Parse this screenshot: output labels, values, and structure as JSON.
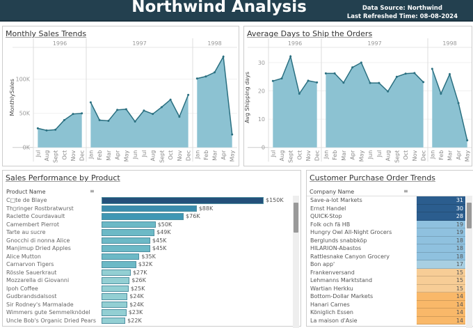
{
  "header": {
    "title": "Northwind Analysis",
    "data_source": "Data Source: Northwind",
    "refreshed": "Last Refreshed Time: 08-08-2024",
    "bg": "#23404f"
  },
  "chart_data": [
    {
      "type": "area",
      "title": "Monthly Sales Trends",
      "ylabel": "MonthlySales",
      "yticks": [
        "0K",
        "50K",
        "100K"
      ],
      "ytick_values": [
        0,
        50000,
        100000
      ],
      "ylim": [
        0,
        140000
      ],
      "fill": "#86bfd0",
      "line": "#2a6f80",
      "panes": [
        {
          "year": "1996",
          "months": [
            "Jul",
            "Aug",
            "Sept",
            "Oct",
            "Nov",
            "Dec"
          ],
          "values": [
            28000,
            25000,
            26000,
            40000,
            49000,
            50000
          ]
        },
        {
          "year": "1997",
          "months": [
            "Jan",
            "Feb",
            "Mar",
            "Apr",
            "May",
            "Jun",
            "Jul",
            "Aug",
            "Sept",
            "Oct",
            "Nov",
            "Dec"
          ],
          "values": [
            66000,
            40000,
            39000,
            55000,
            56000,
            38000,
            54000,
            49000,
            59000,
            70000,
            45000,
            77000
          ]
        },
        {
          "year": "1998",
          "months": [
            "Jan",
            "Feb",
            "Mar",
            "Apr",
            "May"
          ],
          "values": [
            101000,
            104000,
            110000,
            133000,
            19000
          ]
        }
      ]
    },
    {
      "type": "area",
      "title": "Average Days to Ship the Orders",
      "ylabel": "Avg Shipping days",
      "yticks": [
        "0",
        "10",
        "20",
        "30"
      ],
      "ytick_values": [
        0,
        10,
        20,
        30
      ],
      "ylim": [
        0,
        35
      ],
      "fill": "#86bfd0",
      "line": "#2a6f80",
      "panes": [
        {
          "year": "1996",
          "months": [
            "Jul",
            "Aug",
            "Sept",
            "Oct",
            "Nov",
            "Dec"
          ],
          "values": [
            23.5,
            24.4,
            32.2,
            19,
            23.6,
            23
          ]
        },
        {
          "year": "1997",
          "months": [
            "Jan",
            "Feb",
            "Mar",
            "Apr",
            "May",
            "Jun",
            "Jul",
            "Aug",
            "Sept",
            "Oct",
            "Nov",
            "Dec"
          ],
          "values": [
            26.2,
            26.2,
            22.9,
            28.3,
            30,
            22.8,
            22.8,
            19.8,
            25,
            26.1,
            26.3,
            23.1
          ]
        },
        {
          "year": "1998",
          "months": [
            "Jan",
            "Feb",
            "Mar",
            "Apr",
            "May"
          ],
          "values": [
            27.8,
            19,
            25.9,
            15.7,
            2.5
          ]
        }
      ]
    },
    {
      "type": "bar",
      "title": "Sales Performance by Product",
      "column_header": "Product Name",
      "categories": [
        "C□te de Blaye",
        "Th▯ringer Rostbratwurst",
        "Raclette Courdavault",
        "Camembert Pierrot",
        "Tarte au sucre",
        "Gnocchi di nonna Alice",
        "Manjimup Dried Apples",
        "Alice Mutton",
        "Carnarvon Tigers",
        "Rössle Sauerkraut",
        "Mozzarella di Giovanni",
        "Ipoh Coffee",
        "Gudbrandsdalsost",
        "Sir Rodney's Marmalade",
        "Wimmers gute Semmelknödel",
        "Uncle Bob's Organic Dried Pears"
      ],
      "values": [
        150,
        88,
        76,
        50,
        49,
        45,
        45,
        35,
        32,
        27,
        26,
        25,
        24,
        24,
        23,
        22
      ],
      "labels": [
        "$150K",
        "$88K",
        "$76K",
        "$50K",
        "$49K",
        "$45K",
        "$45K",
        "$35K",
        "$32K",
        "$27K",
        "$26K",
        "$25K",
        "$24K",
        "$24K",
        "$23K",
        "$22K"
      ],
      "unit": "K USD"
    },
    {
      "type": "table",
      "title": "Customer Purchase Order Trends",
      "column_header": "Company Name",
      "categories": [
        "Save-a-lot Markets",
        "Ernst Handel",
        "QUICK-Stop",
        "Folk och fä HB",
        "Hungry Owl All-Night Grocers",
        "Berglunds snabbköp",
        "HILARION-Abastos",
        "Rattlesnake Canyon Grocery",
        "Bon app'",
        "Frankenversand",
        "Lehmanns Marktstand",
        "Wartian Herkku",
        "Bottom-Dollar Markets",
        "Hanari Carnes",
        "Königlich Essen",
        "La maison d'Asie"
      ],
      "values": [
        31,
        30,
        28,
        19,
        19,
        18,
        18,
        18,
        17,
        15,
        15,
        15,
        14,
        14,
        14,
        14
      ]
    }
  ]
}
